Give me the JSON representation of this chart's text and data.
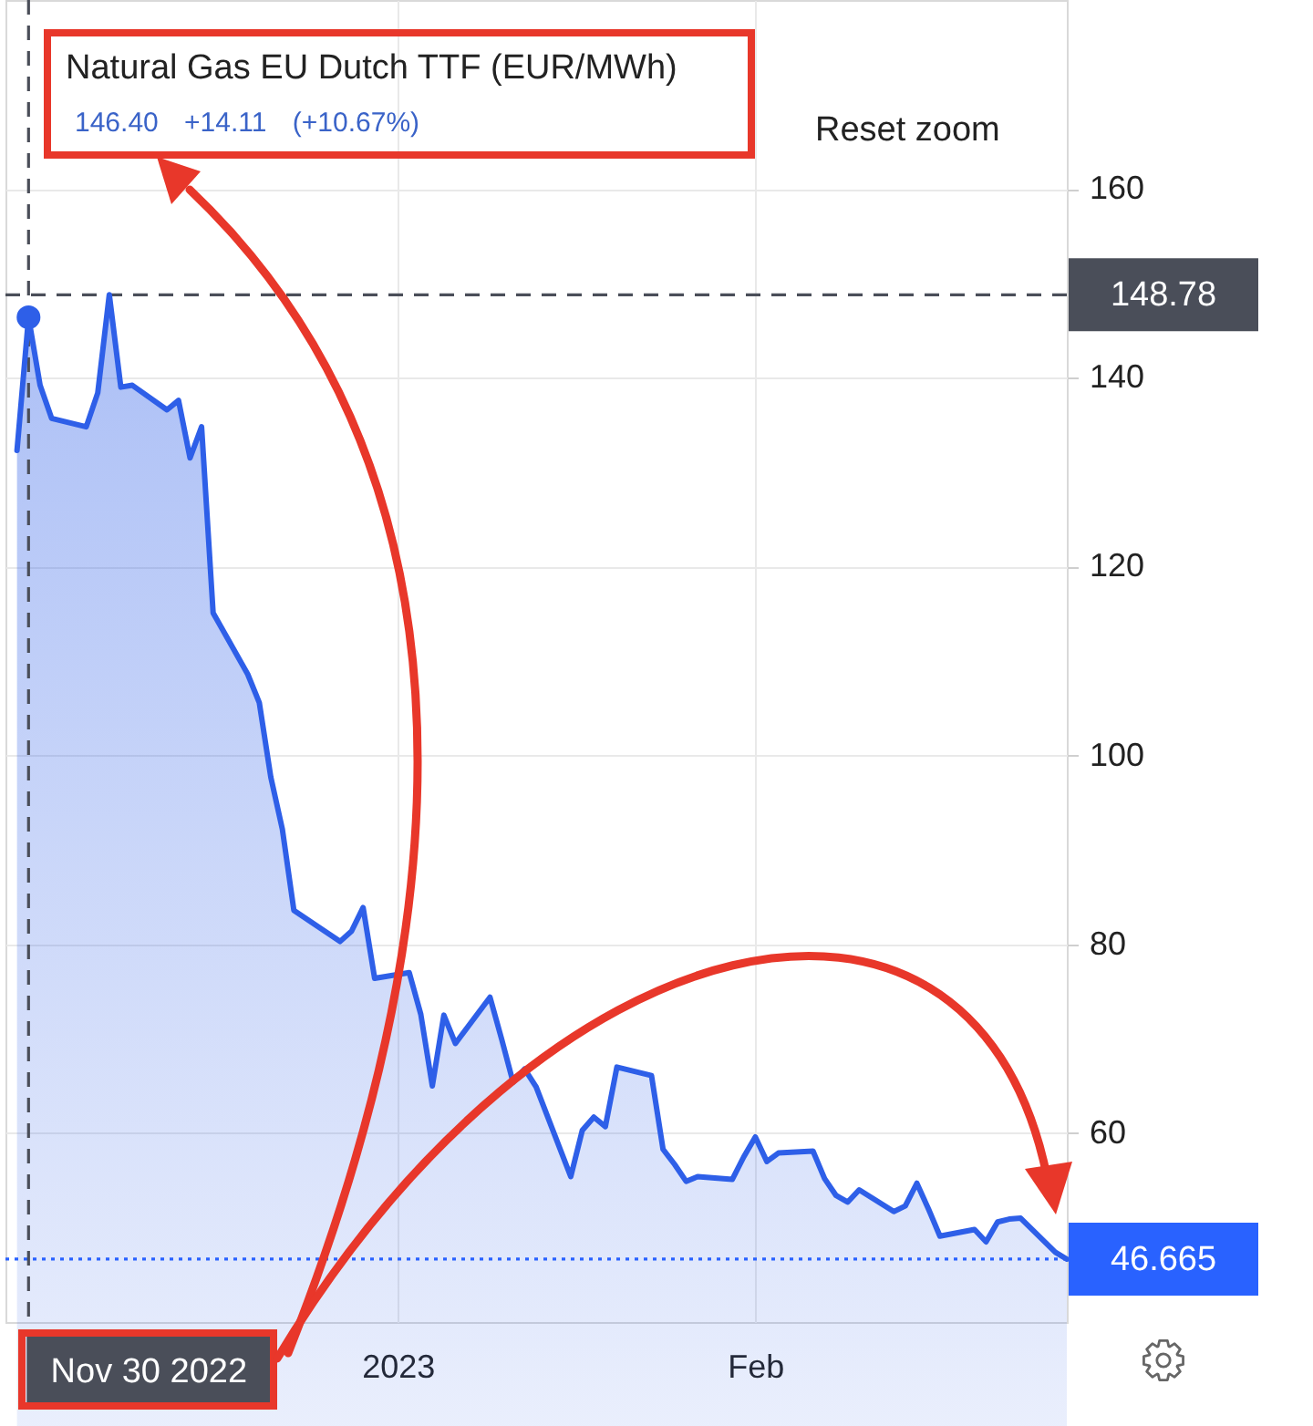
{
  "chart_data": {
    "type": "area",
    "title": "Natural Gas EU Dutch TTF (EUR/MWh)",
    "subtitle": "146.40 +14.11 (+10.67%)",
    "x": [
      "2022-11-29",
      "2022-11-30",
      "2022-12-01",
      "2022-12-02",
      "2022-12-05",
      "2022-12-06",
      "2022-12-07",
      "2022-12-08",
      "2022-12-09",
      "2022-12-12",
      "2022-12-13",
      "2022-12-14",
      "2022-12-15",
      "2022-12-16",
      "2022-12-19",
      "2022-12-20",
      "2022-12-21",
      "2022-12-22",
      "2022-12-23",
      "2022-12-27",
      "2022-12-28",
      "2022-12-29",
      "2022-12-30",
      "2023-01-02",
      "2023-01-03",
      "2023-01-04",
      "2023-01-05",
      "2023-01-06",
      "2023-01-09",
      "2023-01-10",
      "2023-01-11",
      "2023-01-12",
      "2023-01-13",
      "2023-01-16",
      "2023-01-17",
      "2023-01-18",
      "2023-01-19",
      "2023-01-20",
      "2023-01-23",
      "2023-01-24",
      "2023-01-25",
      "2023-01-26",
      "2023-01-27",
      "2023-01-30",
      "2023-01-31",
      "2023-02-01",
      "2023-02-02",
      "2023-02-03",
      "2023-02-06",
      "2023-02-07",
      "2023-02-08",
      "2023-02-09",
      "2023-02-10",
      "2023-02-13",
      "2023-02-14",
      "2023-02-15",
      "2023-02-16",
      "2023-02-17",
      "2023-02-20",
      "2023-02-21",
      "2023-02-22",
      "2023-02-23",
      "2023-02-24",
      "2023-02-27",
      "2023-02-28"
    ],
    "series": [
      {
        "color": "#2e5fe8",
        "values": [
          132.3,
          146.4,
          139.2,
          135.7,
          134.8,
          138.4,
          148.8,
          139.0,
          139.2,
          136.6,
          137.6,
          131.5,
          134.8,
          115.1,
          108.6,
          105.6,
          97.7,
          92.2,
          83.6,
          80.3,
          81.4,
          83.9,
          76.4,
          77.0,
          72.6,
          65.0,
          72.5,
          69.5,
          74.4,
          70.0,
          65.4,
          66.8,
          64.9,
          55.4,
          60.3,
          61.7,
          60.7,
          67.0,
          66.1,
          58.3,
          56.7,
          54.9,
          55.4,
          55.1,
          57.5,
          59.6,
          57.0,
          57.9,
          58.1,
          55.2,
          53.4,
          52.7,
          54.0,
          51.7,
          52.3,
          54.7,
          52.0,
          49.1,
          49.8,
          48.5,
          50.6,
          50.9,
          51.0,
          47.4,
          46.665
        ]
      },
      {
        "type": "scatter",
        "color": "#2e5fe8",
        "marker": "circle",
        "x": [
          "2022-11-30"
        ],
        "values": [
          146.4
        ]
      }
    ],
    "xlim": [
      "2022-11-28",
      "2023-02-28"
    ],
    "xticks": [
      {
        "value": "2023-01-01",
        "label": "2023"
      },
      {
        "value": "2023-02-01",
        "label": "Feb"
      }
    ],
    "ylim": [
      40,
      180
    ],
    "yticks": [
      60,
      80,
      100,
      120,
      140,
      160
    ],
    "grid": true,
    "ref_lines": [
      {
        "axis": "y",
        "value": 148.78,
        "label": "148.78",
        "color": "#4a4e59",
        "line_style": "dashed"
      },
      {
        "axis": "y",
        "value": 46.665,
        "label": "46.665",
        "color": "#2962ff",
        "line_style": "dotted"
      },
      {
        "axis": "x",
        "value": "2022-11-30",
        "label": "Nov 30 2022",
        "color": "#4a4e59",
        "line_style": "dashed"
      }
    ],
    "annotations": [
      "Reset zoom"
    ]
  }
}
